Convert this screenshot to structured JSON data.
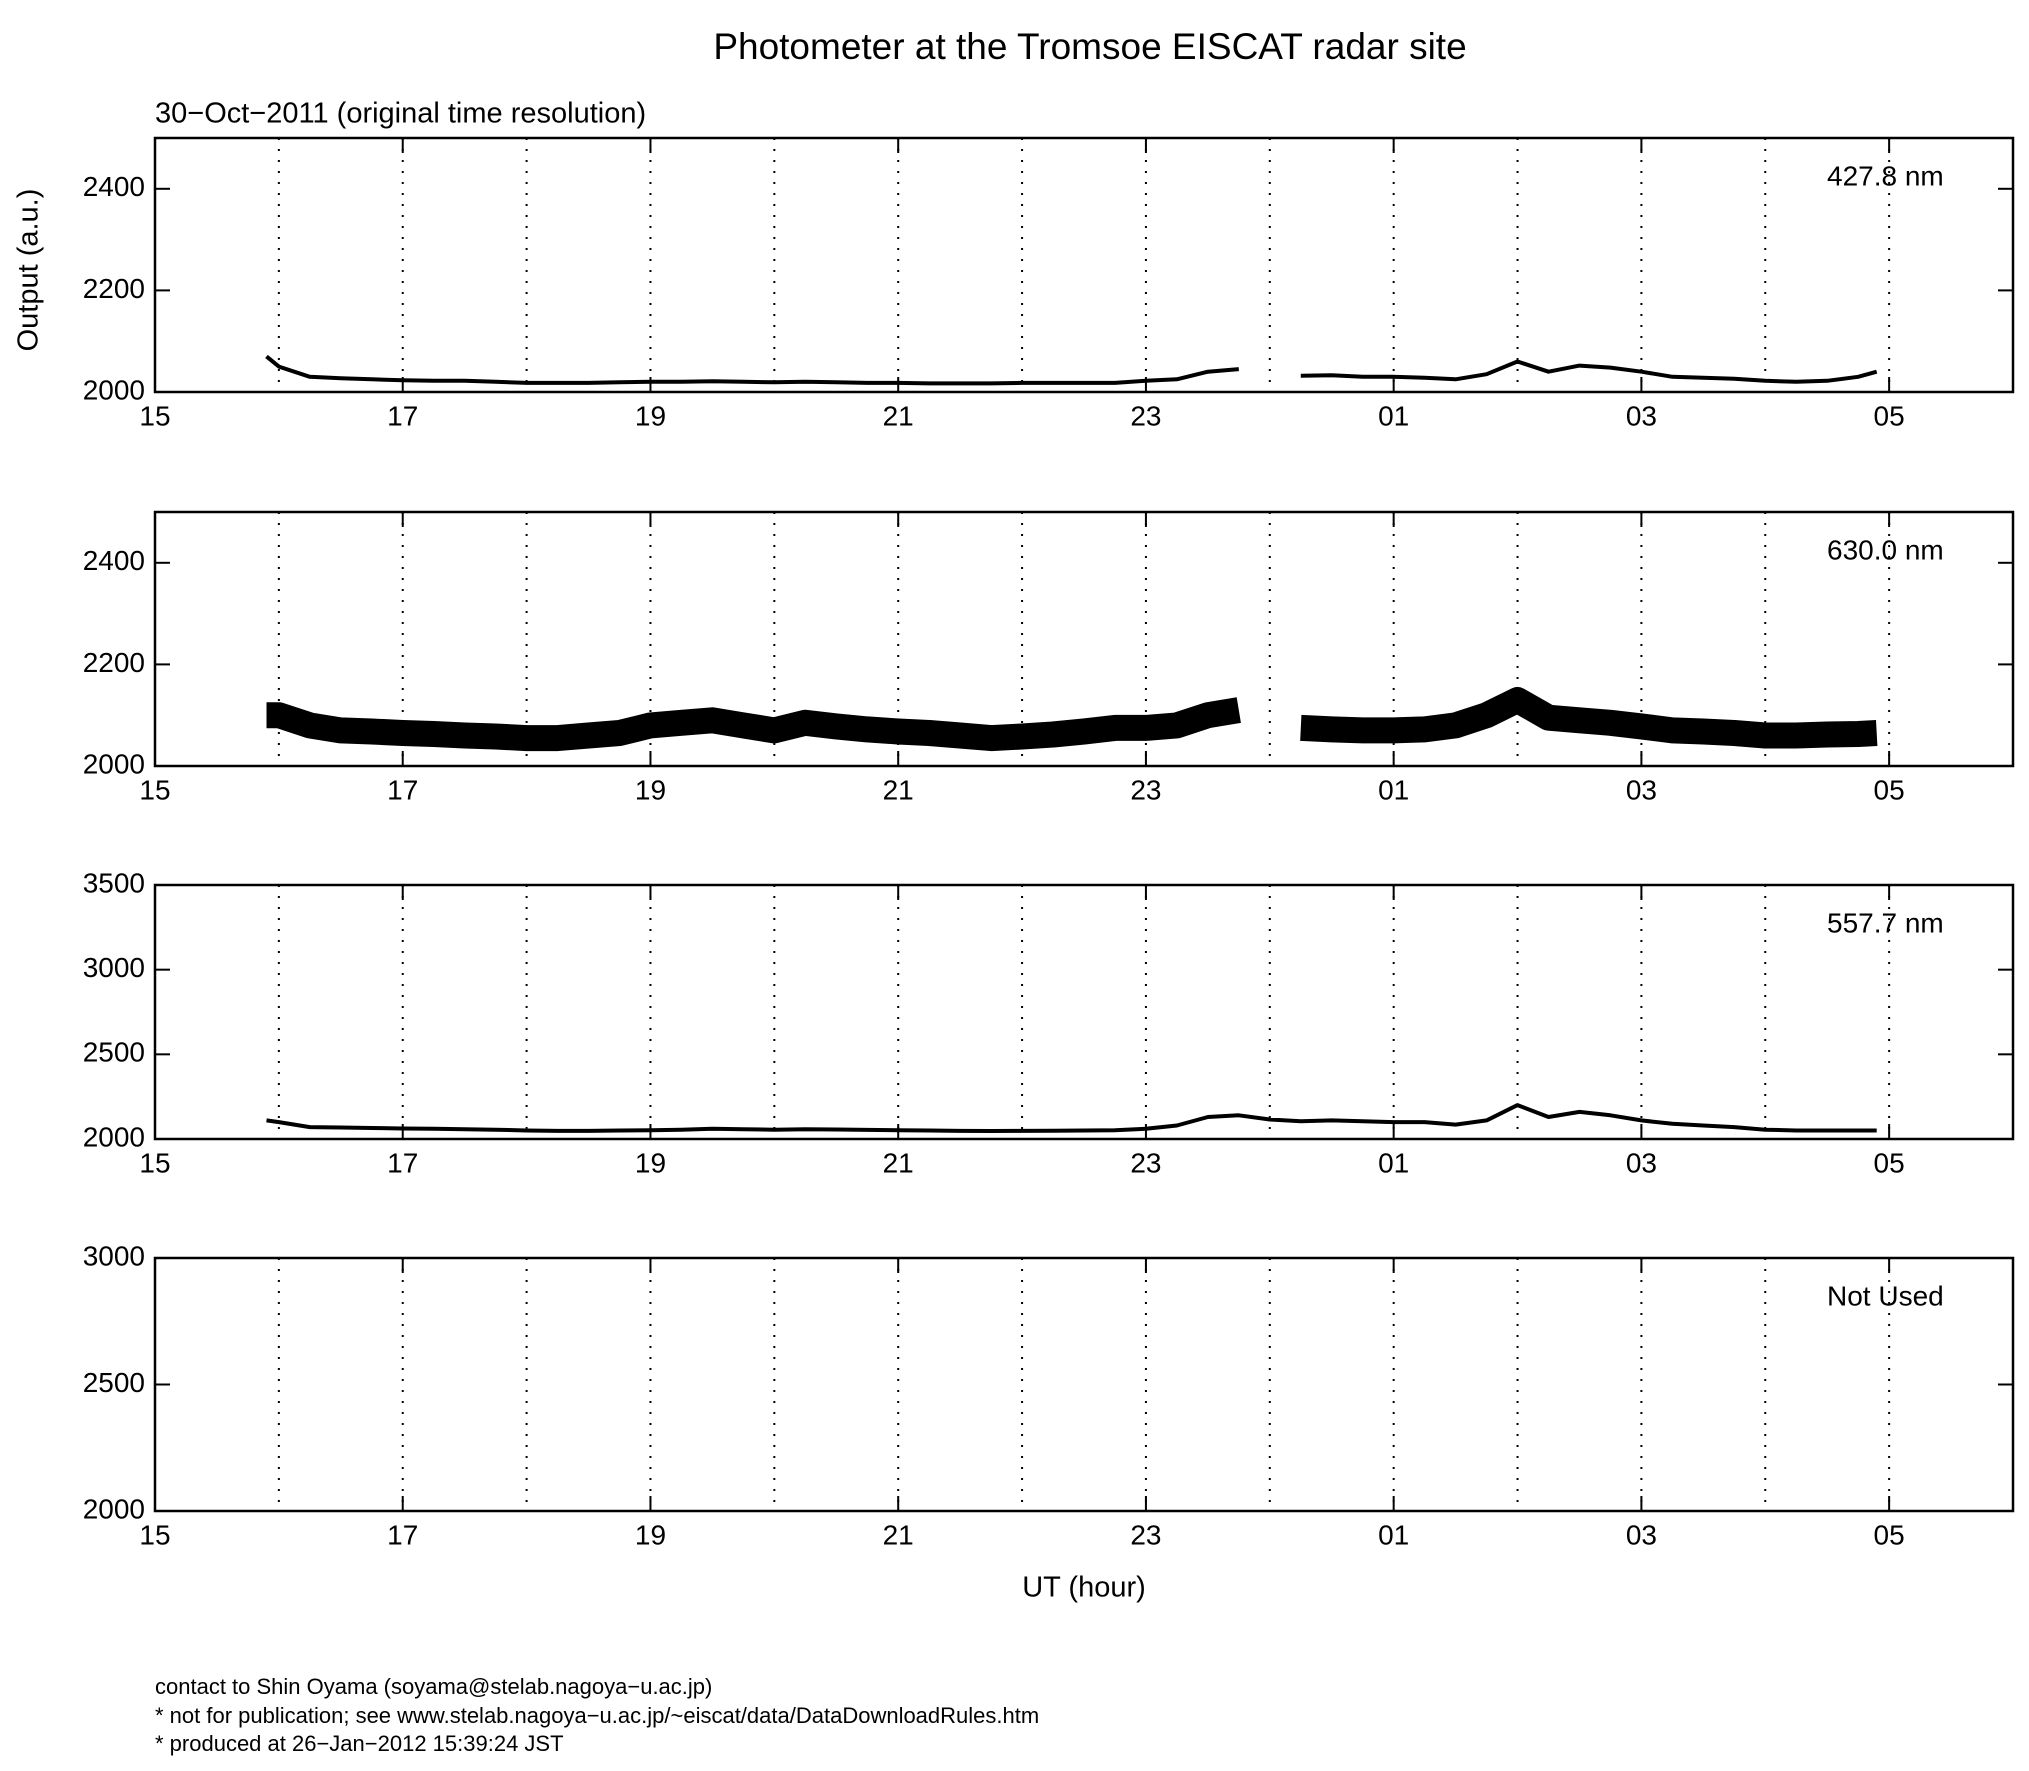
{
  "title": "Photometer at the Tromsoe EISCAT radar site",
  "subtitle": "30−Oct−2011 (original time resolution)",
  "y_label": "Output (a.u.)",
  "x_label": "UT (hour)",
  "footer": [
    "contact to Shin Oyama (soyama@stelab.nagoya−u.ac.jp)",
    "* not for publication; see www.stelab.nagoya−u.ac.jp/~eiscat/data/DataDownloadRules.htm",
    "* produced at 26−Jan−2012 15:39:24 JST"
  ],
  "chart_data": [
    {
      "type": "line",
      "label": "427.8 nm",
      "xlim": [
        15,
        30
      ],
      "ylim": [
        2000,
        2500
      ],
      "yticks": [
        2000,
        2200,
        2400
      ],
      "xticks": [
        15,
        17,
        19,
        21,
        23,
        {
          "value": 25,
          "label": "01"
        },
        {
          "value": 27,
          "label": "03"
        },
        {
          "value": 29,
          "label": "05"
        }
      ],
      "xgrid": [
        16,
        17,
        18,
        19,
        20,
        21,
        22,
        23,
        24,
        25,
        26,
        27,
        28,
        29
      ],
      "x": [
        15.9,
        16,
        16.25,
        16.5,
        16.75,
        17,
        17.25,
        17.5,
        17.75,
        18,
        18.25,
        18.5,
        18.75,
        19,
        19.25,
        19.5,
        19.75,
        20,
        20.25,
        20.5,
        20.75,
        21,
        21.25,
        21.5,
        21.75,
        22,
        22.25,
        22.5,
        22.75,
        23,
        23.25,
        23.5,
        23.75,
        24,
        24.25,
        24.5,
        24.75,
        25,
        25.25,
        25.5,
        25.75,
        26,
        26.25,
        26.5,
        26.75,
        27,
        27.25,
        27.5,
        27.75,
        28,
        28.25,
        28.5,
        28.75,
        28.9
      ],
      "series": [
        {
          "color": "#000000",
          "line_width": 4,
          "values": [
            2070,
            2050,
            2030,
            2027,
            2025,
            2023,
            2022,
            2022,
            2020,
            2018,
            2018,
            2018,
            2019,
            2020,
            2020,
            2021,
            2020,
            2019,
            2020,
            2019,
            2018,
            2018,
            2017,
            2017,
            2017,
            2018,
            2018,
            2018,
            2018,
            2022,
            2025,
            2040,
            2045,
            null,
            2032,
            2033,
            2030,
            2030,
            2028,
            2025,
            2035,
            2060,
            2040,
            2052,
            2048,
            2040,
            2030,
            2028,
            2026,
            2022,
            2020,
            2022,
            2030,
            2040
          ]
        }
      ]
    },
    {
      "type": "line",
      "label": "630.0 nm",
      "xlim": [
        15,
        30
      ],
      "ylim": [
        2000,
        2500
      ],
      "yticks": [
        2000,
        2200,
        2400
      ],
      "xticks": [
        15,
        17,
        19,
        21,
        23,
        {
          "value": 25,
          "label": "01"
        },
        {
          "value": 27,
          "label": "03"
        },
        {
          "value": 29,
          "label": "05"
        }
      ],
      "xgrid": [
        16,
        17,
        18,
        19,
        20,
        21,
        22,
        23,
        24,
        25,
        26,
        27,
        28,
        29
      ],
      "x": [
        15.9,
        16,
        16.25,
        16.5,
        16.75,
        17,
        17.25,
        17.5,
        17.75,
        18,
        18.25,
        18.5,
        18.75,
        19,
        19.25,
        19.5,
        19.75,
        20,
        20.25,
        20.5,
        20.75,
        21,
        21.25,
        21.5,
        21.75,
        22,
        22.25,
        22.5,
        22.75,
        23,
        23.25,
        23.5,
        23.75,
        24,
        24.25,
        24.5,
        24.75,
        25,
        25.25,
        25.5,
        25.75,
        26,
        26.25,
        26.5,
        26.75,
        27,
        27.25,
        27.5,
        27.75,
        28,
        28.25,
        28.5,
        28.75,
        28.9
      ],
      "series": [
        {
          "color": "#000000",
          "line_width": 26,
          "values": [
            2100,
            2100,
            2080,
            2070,
            2068,
            2065,
            2063,
            2060,
            2058,
            2055,
            2055,
            2060,
            2065,
            2080,
            2085,
            2090,
            2080,
            2070,
            2085,
            2078,
            2072,
            2068,
            2065,
            2060,
            2055,
            2058,
            2062,
            2068,
            2075,
            2075,
            2080,
            2100,
            2110,
            null,
            2075,
            2072,
            2070,
            2070,
            2072,
            2080,
            2100,
            2130,
            2095,
            2090,
            2085,
            2078,
            2070,
            2068,
            2065,
            2060,
            2060,
            2062,
            2063,
            2065
          ]
        }
      ]
    },
    {
      "type": "line",
      "label": "557.7 nm",
      "xlim": [
        15,
        30
      ],
      "ylim": [
        2000,
        3500
      ],
      "yticks": [
        2000,
        2500,
        3000,
        3500
      ],
      "xticks": [
        15,
        17,
        19,
        21,
        23,
        {
          "value": 25,
          "label": "01"
        },
        {
          "value": 27,
          "label": "03"
        },
        {
          "value": 29,
          "label": "05"
        }
      ],
      "xgrid": [
        16,
        17,
        18,
        19,
        20,
        21,
        22,
        23,
        24,
        25,
        26,
        27,
        28,
        29
      ],
      "x": [
        15.9,
        16,
        16.25,
        16.5,
        16.75,
        17,
        17.25,
        17.5,
        17.75,
        18,
        18.25,
        18.5,
        18.75,
        19,
        19.25,
        19.5,
        19.75,
        20,
        20.25,
        20.5,
        20.75,
        21,
        21.25,
        21.5,
        21.75,
        22,
        22.25,
        22.5,
        22.75,
        23,
        23.25,
        23.5,
        23.75,
        24,
        24.25,
        24.5,
        24.75,
        25,
        25.25,
        25.5,
        25.75,
        26,
        26.25,
        26.5,
        26.75,
        27,
        27.25,
        27.5,
        27.75,
        28,
        28.25,
        28.5,
        28.75,
        28.9
      ],
      "series": [
        {
          "color": "#000000",
          "line_width": 4,
          "values": [
            2110,
            2100,
            2070,
            2068,
            2065,
            2062,
            2060,
            2058,
            2055,
            2050,
            2048,
            2048,
            2050,
            2052,
            2055,
            2060,
            2058,
            2055,
            2058,
            2056,
            2054,
            2052,
            2050,
            2048,
            2047,
            2048,
            2049,
            2050,
            2052,
            2060,
            2080,
            2130,
            2140,
            2115,
            2105,
            2110,
            2105,
            2100,
            2100,
            2085,
            2110,
            2200,
            2130,
            2160,
            2140,
            2110,
            2090,
            2080,
            2070,
            2055,
            2050,
            2050,
            2050,
            2050
          ]
        }
      ]
    },
    {
      "type": "line",
      "label": "Not Used",
      "xlim": [
        15,
        30
      ],
      "ylim": [
        2000,
        3000
      ],
      "yticks": [
        2000,
        2500,
        3000
      ],
      "xticks": [
        15,
        17,
        19,
        21,
        23,
        {
          "value": 25,
          "label": "01"
        },
        {
          "value": 27,
          "label": "03"
        },
        {
          "value": 29,
          "label": "05"
        }
      ],
      "xgrid": [
        16,
        17,
        18,
        19,
        20,
        21,
        22,
        23,
        24,
        25,
        26,
        27,
        28,
        29
      ],
      "series": []
    }
  ]
}
